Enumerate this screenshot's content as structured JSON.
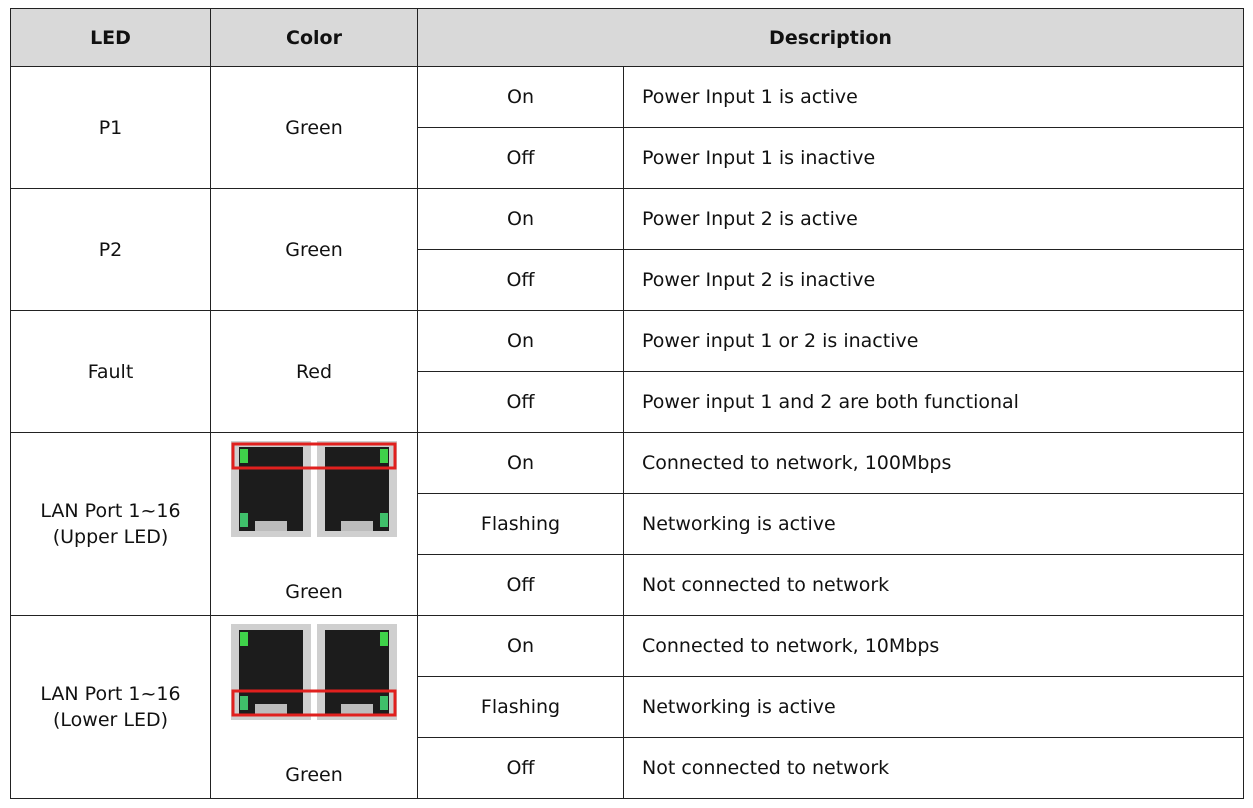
{
  "table": {
    "header": [
      "LED",
      "Color",
      "Description"
    ],
    "groups": [
      {
        "led": [
          "P1"
        ],
        "color": "Green",
        "states": [
          {
            "state": "On",
            "description": "Power Input 1 is active"
          },
          {
            "state": "Off",
            "description": "Power Input 1 is inactive"
          }
        ]
      },
      {
        "led": [
          "P2"
        ],
        "color": "Green",
        "states": [
          {
            "state": "On",
            "description": "Power Input 2 is active"
          },
          {
            "state": "Off",
            "description": "Power Input 2 is inactive"
          }
        ]
      },
      {
        "led": [
          "Fault"
        ],
        "color": "Red",
        "states": [
          {
            "state": "On",
            "description": "Power input 1 or 2 is inactive"
          },
          {
            "state": "Off",
            "description": "Power input 1 and 2 are both functional"
          }
        ]
      },
      {
        "led": [
          "LAN Port 1~16",
          "(Upper LED)"
        ],
        "color": "Green",
        "states": [
          {
            "state": "On",
            "description": "Connected to network, 100Mbps"
          },
          {
            "state": "Flashing",
            "description": "Networking is active"
          },
          {
            "state": "Off",
            "description": "Not connected to network"
          }
        ]
      },
      {
        "led": [
          "LAN Port 1~16",
          "(Lower LED)"
        ],
        "color": "Green",
        "states": [
          {
            "state": "On",
            "description": "Connected to network, 10Mbps"
          },
          {
            "state": "Flashing",
            "description": "Networking is active"
          },
          {
            "state": "Off",
            "description": "Not connected to network"
          }
        ]
      }
    ]
  }
}
